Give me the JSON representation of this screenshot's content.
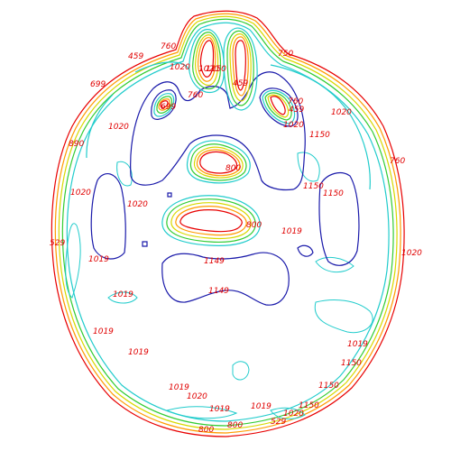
{
  "figure": {
    "kind": "isodose-contour-plot",
    "colors": {
      "red": "#e80000",
      "orange": "#ff9a00",
      "yellow": "#d8d800",
      "green": "#33cc33",
      "cyan": "#22cccc",
      "blue": "#1a1aaa",
      "label": "#e00000"
    },
    "labels": [
      "459",
      "760",
      "1020",
      "1020",
      "1150",
      "459",
      "750",
      "1020",
      "699",
      "760",
      "699",
      "760",
      "459",
      "1020",
      "1020",
      "1150",
      "760",
      "800",
      "1020",
      "1020",
      "529",
      "890",
      "1019",
      "1019",
      "1019",
      "1019",
      "1019",
      "1019",
      "1019",
      "1020",
      "1019",
      "1149",
      "1149",
      "800",
      "1150",
      "1150",
      "1020",
      "1019",
      "1150",
      "1150",
      "1150",
      "1020",
      "529",
      "800",
      "800"
    ]
  }
}
